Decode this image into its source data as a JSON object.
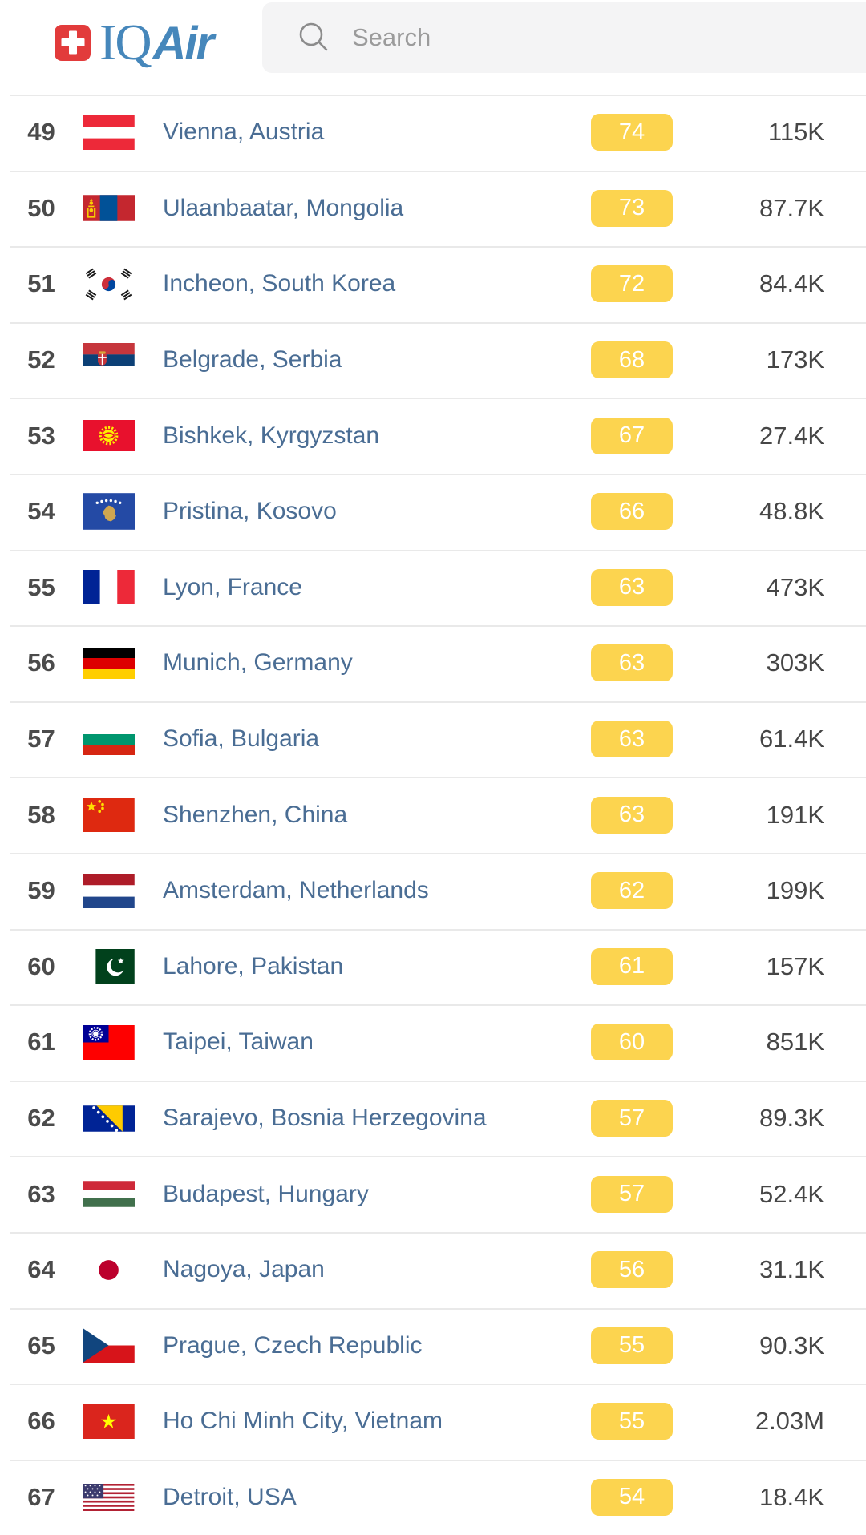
{
  "header": {
    "logo": {
      "iq": "IQ",
      "air": "Air"
    },
    "search": {
      "placeholder": "Search"
    }
  },
  "theme": {
    "brand_red": "#E23B3B",
    "brand_blue": "#4687BB",
    "aqi_badge_color": "#FCD44F",
    "aqi_badge_text": "#FFFFFF",
    "city_link_color": "#4A6D94",
    "divider_color": "#E9E9E9"
  },
  "ranking": {
    "rows": [
      {
        "rank": "49",
        "flag": "austria",
        "city": "Vienna, Austria",
        "aqi": "74",
        "followers": "115K"
      },
      {
        "rank": "50",
        "flag": "mongolia",
        "city": "Ulaanbaatar, Mongolia",
        "aqi": "73",
        "followers": "87.7K"
      },
      {
        "rank": "51",
        "flag": "south-korea",
        "city": "Incheon, South Korea",
        "aqi": "72",
        "followers": "84.4K"
      },
      {
        "rank": "52",
        "flag": "serbia",
        "city": "Belgrade, Serbia",
        "aqi": "68",
        "followers": "173K"
      },
      {
        "rank": "53",
        "flag": "kyrgyzstan",
        "city": "Bishkek, Kyrgyzstan",
        "aqi": "67",
        "followers": "27.4K"
      },
      {
        "rank": "54",
        "flag": "kosovo",
        "city": "Pristina, Kosovo",
        "aqi": "66",
        "followers": "48.8K"
      },
      {
        "rank": "55",
        "flag": "france",
        "city": "Lyon, France",
        "aqi": "63",
        "followers": "473K"
      },
      {
        "rank": "56",
        "flag": "germany",
        "city": "Munich, Germany",
        "aqi": "63",
        "followers": "303K"
      },
      {
        "rank": "57",
        "flag": "bulgaria",
        "city": "Sofia, Bulgaria",
        "aqi": "63",
        "followers": "61.4K"
      },
      {
        "rank": "58",
        "flag": "china",
        "city": "Shenzhen, China",
        "aqi": "63",
        "followers": "191K"
      },
      {
        "rank": "59",
        "flag": "netherlands",
        "city": "Amsterdam, Netherlands",
        "aqi": "62",
        "followers": "199K"
      },
      {
        "rank": "60",
        "flag": "pakistan",
        "city": "Lahore, Pakistan",
        "aqi": "61",
        "followers": "157K"
      },
      {
        "rank": "61",
        "flag": "taiwan",
        "city": "Taipei, Taiwan",
        "aqi": "60",
        "followers": "851K"
      },
      {
        "rank": "62",
        "flag": "bosnia-herzegovina",
        "city": "Sarajevo, Bosnia Herzegovina",
        "aqi": "57",
        "followers": "89.3K"
      },
      {
        "rank": "63",
        "flag": "hungary",
        "city": "Budapest, Hungary",
        "aqi": "57",
        "followers": "52.4K"
      },
      {
        "rank": "64",
        "flag": "japan",
        "city": "Nagoya, Japan",
        "aqi": "56",
        "followers": "31.1K"
      },
      {
        "rank": "65",
        "flag": "czech-republic",
        "city": "Prague, Czech Republic",
        "aqi": "55",
        "followers": "90.3K"
      },
      {
        "rank": "66",
        "flag": "vietnam",
        "city": "Ho Chi Minh City, Vietnam",
        "aqi": "55",
        "followers": "2.03M"
      },
      {
        "rank": "67",
        "flag": "usa",
        "city": "Detroit, USA",
        "aqi": "54",
        "followers": "18.4K"
      }
    ]
  }
}
